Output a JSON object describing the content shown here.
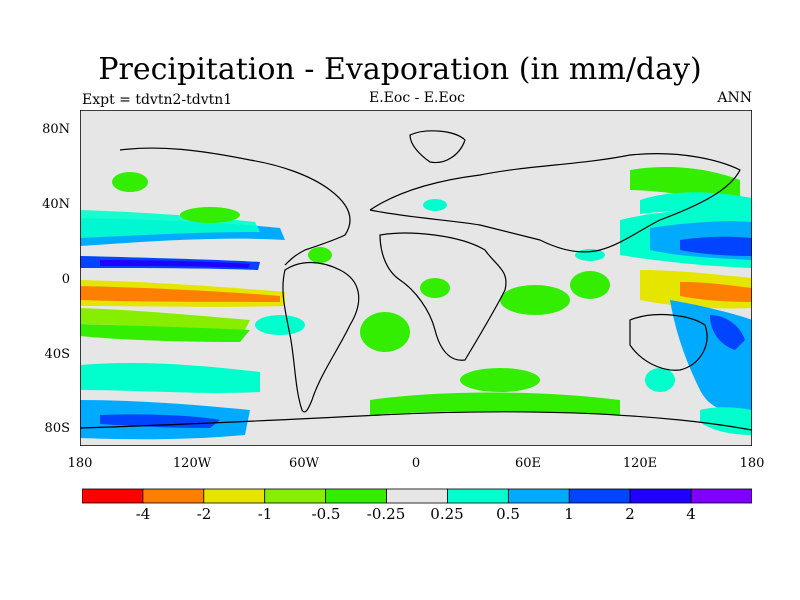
{
  "title": "Precipitation - Evaporation (in mm/day)",
  "subtitle_left": "Expt = tdvtn2-tdvtn1",
  "subtitle_center": "E.Eoc - E.Eoc",
  "subtitle_right": "ANN",
  "y_ticks": [
    "80N",
    "40N",
    "0",
    "40S",
    "80S"
  ],
  "x_ticks": [
    "180",
    "120W",
    "60W",
    "0",
    "60E",
    "120E",
    "180"
  ],
  "colorbar": {
    "colors": [
      "#ff0000",
      "#ff7f00",
      "#e5e500",
      "#88ee00",
      "#33ee00",
      "#e6e6e6",
      "#00ffcc",
      "#00aaff",
      "#0044ff",
      "#2200ff",
      "#7f00ff"
    ],
    "labels": [
      "-4",
      "-2",
      "-1",
      "-0.5",
      "-0.25",
      "0.25",
      "0.5",
      "1",
      "2",
      "4"
    ]
  },
  "chart_data": {
    "type": "map-contour",
    "title": "Precipitation - Evaporation (in mm/day)",
    "projection": "cylindrical-equidistant",
    "lon_range": [
      -180,
      180
    ],
    "lat_range": [
      -90,
      90
    ],
    "units": "mm/day",
    "levels": [
      -4,
      -2,
      -1,
      -0.5,
      -0.25,
      0.25,
      0.5,
      1,
      2,
      4
    ],
    "land_color": "#e6e6e6"
  }
}
